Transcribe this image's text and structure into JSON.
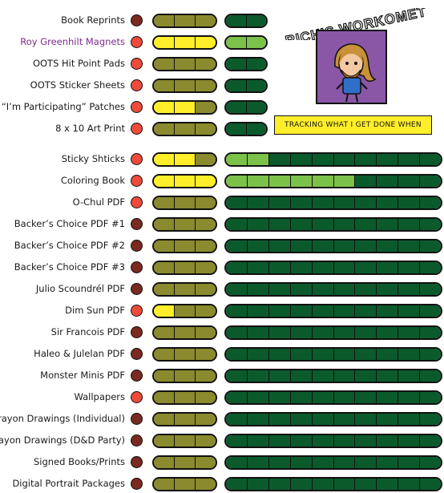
{
  "header": {
    "title": "RICH'S WORKOMETER!",
    "tagline": "TRACKING WHAT I GET DONE WHEN"
  },
  "colors": {
    "status_on": "#ee4b3a",
    "status_off": "#7a2a1f",
    "stage1_done": "#ffee2a",
    "stage1_todo": "#8a8a2e",
    "stage2_done": "#7cc24a",
    "stage2_todo": "#0b5a2c",
    "portrait_bg": "#8a56a6"
  },
  "items": [
    {
      "label": "Book Reprints",
      "highlighted": false,
      "status": "off",
      "stage1_done": 0,
      "stage2_done": 0,
      "stage2_total": 2
    },
    {
      "label": "Roy Greenhilt Magnets",
      "highlighted": true,
      "status": "on",
      "stage1_done": 3,
      "stage2_done": 2,
      "stage2_total": 2
    },
    {
      "label": "OOTS Hit Point Pads",
      "highlighted": false,
      "status": "on",
      "stage1_done": 0,
      "stage2_done": 0,
      "stage2_total": 2
    },
    {
      "label": "OOTS Sticker Sheets",
      "highlighted": false,
      "status": "on",
      "stage1_done": 0,
      "stage2_done": 0,
      "stage2_total": 2
    },
    {
      "label": "“I’m Participating” Patches",
      "highlighted": false,
      "status": "on",
      "stage1_done": 2,
      "stage2_done": 0,
      "stage2_total": 2
    },
    {
      "label": "8 x 10 Art Print",
      "highlighted": false,
      "status": "on",
      "stage1_done": 0,
      "stage2_done": 0,
      "stage2_total": 2
    },
    {
      "label": "Sticky Shticks",
      "highlighted": false,
      "status": "on",
      "stage1_done": 2,
      "stage2_done": 2,
      "stage2_total": 10
    },
    {
      "label": "Coloring Book",
      "highlighted": false,
      "status": "on",
      "stage1_done": 3,
      "stage2_done": 6,
      "stage2_total": 10
    },
    {
      "label": "O-Chul PDF",
      "highlighted": false,
      "status": "on",
      "stage1_done": 0,
      "stage2_done": 0,
      "stage2_total": 10
    },
    {
      "label": "Backer’s Choice PDF #1",
      "highlighted": false,
      "status": "off",
      "stage1_done": 0,
      "stage2_done": 0,
      "stage2_total": 10
    },
    {
      "label": "Backer’s Choice PDF #2",
      "highlighted": false,
      "status": "off",
      "stage1_done": 0,
      "stage2_done": 0,
      "stage2_total": 10
    },
    {
      "label": "Backer’s Choice PDF #3",
      "highlighted": false,
      "status": "off",
      "stage1_done": 0,
      "stage2_done": 0,
      "stage2_total": 10
    },
    {
      "label": "Julio Scoundrél PDF",
      "highlighted": false,
      "status": "off",
      "stage1_done": 0,
      "stage2_done": 0,
      "stage2_total": 10
    },
    {
      "label": "Dim Sun PDF",
      "highlighted": false,
      "status": "on",
      "stage1_done": 1,
      "stage2_done": 0,
      "stage2_total": 10
    },
    {
      "label": "Sir Francois  PDF",
      "highlighted": false,
      "status": "off",
      "stage1_done": 0,
      "stage2_done": 0,
      "stage2_total": 10
    },
    {
      "label": "Haleo & Julelan PDF",
      "highlighted": false,
      "status": "off",
      "stage1_done": 0,
      "stage2_done": 0,
      "stage2_total": 10
    },
    {
      "label": "Monster Minis PDF",
      "highlighted": false,
      "status": "off",
      "stage1_done": 0,
      "stage2_done": 0,
      "stage2_total": 10
    },
    {
      "label": "Wallpapers",
      "highlighted": false,
      "status": "on",
      "stage1_done": 0,
      "stage2_done": 0,
      "stage2_total": 10
    },
    {
      "label": "Crayon Drawings (Individual)",
      "highlighted": false,
      "status": "off",
      "stage1_done": 0,
      "stage2_done": 0,
      "stage2_total": 10
    },
    {
      "label": "Crayon Drawings (D&D Party)",
      "highlighted": false,
      "status": "off",
      "stage1_done": 0,
      "stage2_done": 0,
      "stage2_total": 10
    },
    {
      "label": "Signed Books/Prints",
      "highlighted": false,
      "status": "off",
      "stage1_done": 0,
      "stage2_done": 0,
      "stage2_total": 10
    },
    {
      "label": "Digital Portrait Packages",
      "highlighted": false,
      "status": "off",
      "stage1_done": 0,
      "stage2_done": 0,
      "stage2_total": 10
    }
  ]
}
